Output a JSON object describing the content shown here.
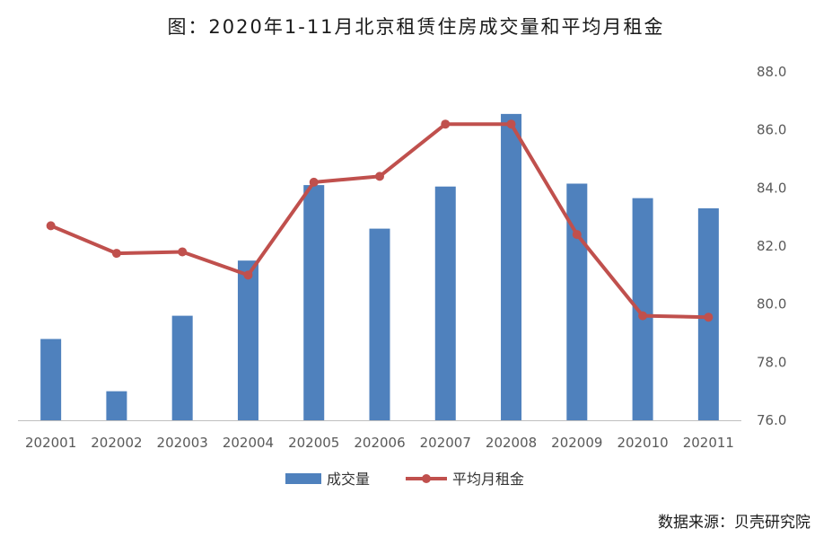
{
  "title": "图：2020年1-11月北京租赁住房成交量和平均月租金",
  "source_note": "数据来源：贝壳研究院",
  "colors": {
    "bar": "#4F81BD",
    "line": "#C0504D",
    "axis": "#BFBFBF",
    "tick_text": "#595959"
  },
  "chart_data": {
    "type": "bar",
    "title": "图：2020年1-11月北京租赁住房成交量和平均月租金",
    "categories": [
      "202001",
      "202002",
      "202003",
      "202004",
      "202005",
      "202006",
      "202007",
      "202008",
      "202009",
      "202010",
      "202011"
    ],
    "series": [
      {
        "name": "成交量",
        "type": "bar",
        "values": [
          78.8,
          77.0,
          79.6,
          81.5,
          84.1,
          82.6,
          84.05,
          86.55,
          84.15,
          83.65,
          83.3
        ]
      },
      {
        "name": "平均月租金",
        "type": "line",
        "axis": "right",
        "values": [
          82.7,
          81.75,
          81.8,
          81.0,
          84.2,
          84.4,
          86.2,
          86.2,
          82.4,
          79.6,
          79.55
        ]
      }
    ],
    "y_right": {
      "ylim": [
        76,
        88
      ],
      "ticks": [
        "76.0",
        "78.0",
        "80.0",
        "82.0",
        "84.0",
        "86.0",
        "88.0"
      ]
    },
    "grid": false,
    "legend": {
      "placement": "bottom",
      "entries": [
        "成交量",
        "平均月租金"
      ]
    }
  }
}
